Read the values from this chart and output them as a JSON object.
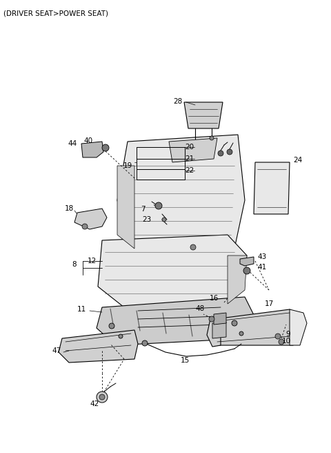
{
  "title": "(DRIVER SEAT>POWER SEAT)",
  "bg_color": "#ffffff",
  "lc": "#000000",
  "gray1": "#d0d0d0",
  "gray2": "#e8e8e8",
  "gray3": "#b8b8b8",
  "fig_w": 4.8,
  "fig_h": 6.56,
  "dpi": 100
}
